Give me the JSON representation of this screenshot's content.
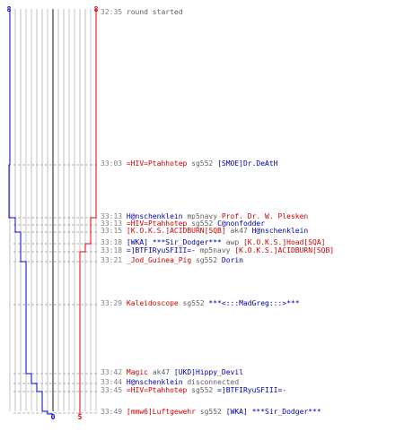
{
  "colors": {
    "team_a": "#0000cc",
    "team_b": "#dd0000",
    "grid": "#c0c0c0",
    "center": "#606060",
    "time": "#808080"
  },
  "teams": {
    "blue": {
      "start_count": "8",
      "end_count": "0"
    },
    "red": {
      "start_count": "8",
      "end_count": "5"
    }
  },
  "events": [
    {
      "time": "32:35",
      "parts": [
        {
          "text": "round started",
          "color": "gray"
        }
      ]
    },
    {
      "time": "33:03",
      "parts": [
        {
          "text": "=HIV=Ptahhotep",
          "color": "red"
        },
        {
          "text": " sg552 ",
          "color": "gray"
        },
        {
          "text": "[SMOE]Dr.DeAtH",
          "color": "blue"
        }
      ]
    },
    {
      "time": "33:13",
      "parts": [
        {
          "text": "H@nschenklein",
          "color": "blue"
        },
        {
          "text": " mp5navy ",
          "color": "gray"
        },
        {
          "text": "Prof. Dr. W. Plesken",
          "color": "red"
        }
      ]
    },
    {
      "time": "33:13",
      "parts": [
        {
          "text": "=HIV=Ptahhotep",
          "color": "red"
        },
        {
          "text": " sg552 ",
          "color": "gray"
        },
        {
          "text": "C@nonfodder",
          "color": "blue"
        }
      ]
    },
    {
      "time": "33:15",
      "parts": [
        {
          "text": "[K.O.K.S.]ACIDBURN[SQB]",
          "color": "red"
        },
        {
          "text": " ak47 ",
          "color": "gray"
        },
        {
          "text": "H@nschenklein",
          "color": "blue"
        }
      ]
    },
    {
      "time": "33:18",
      "parts": [
        {
          "text": "[WKA] ***Sir_Dodger***",
          "color": "blue"
        },
        {
          "text": " awp ",
          "color": "gray"
        },
        {
          "text": "[K.O.K.S.]Hoad[SQA]",
          "color": "red"
        }
      ]
    },
    {
      "time": "33:18",
      "parts": [
        {
          "text": "=]BTFIRyuSFIII=-",
          "color": "blue"
        },
        {
          "text": " mp5navy ",
          "color": "gray"
        },
        {
          "text": "[K.O.K.S.]ACIDBURN[SQB]",
          "color": "red"
        }
      ]
    },
    {
      "time": "33:21",
      "parts": [
        {
          "text": "_Jod_Guinea_Pig",
          "color": "red"
        },
        {
          "text": " sg552 ",
          "color": "gray"
        },
        {
          "text": "Dorin",
          "color": "blue"
        }
      ]
    },
    {
      "time": "33:29",
      "parts": [
        {
          "text": "Kaleidoscope",
          "color": "red"
        },
        {
          "text": " sg552 ",
          "color": "gray"
        },
        {
          "text": "***<:::MadGreg:::>***",
          "color": "blue"
        }
      ]
    },
    {
      "time": "33:42",
      "parts": [
        {
          "text": "Magic",
          "color": "red"
        },
        {
          "text": " ak47 ",
          "color": "gray"
        },
        {
          "text": "[UKD]Hippy_Devil",
          "color": "blue"
        }
      ]
    },
    {
      "time": "33:44",
      "parts": [
        {
          "text": "H@nschenklein",
          "color": "blue"
        },
        {
          "text": " disconnected",
          "color": "gray"
        }
      ]
    },
    {
      "time": "33:45",
      "parts": [
        {
          "text": "=HIV=Ptahhotep",
          "color": "red"
        },
        {
          "text": " sg552 ",
          "color": "gray"
        },
        {
          "text": "=]BTFIRyuSFIII=-",
          "color": "blue"
        }
      ]
    },
    {
      "time": "33:49",
      "parts": [
        {
          "text": "[mmw6]Luftgewehr",
          "color": "red"
        },
        {
          "text": " sg552 ",
          "color": "gray"
        },
        {
          "text": "[WKA] ***Sir_Dodger***",
          "color": "blue"
        }
      ]
    }
  ]
}
